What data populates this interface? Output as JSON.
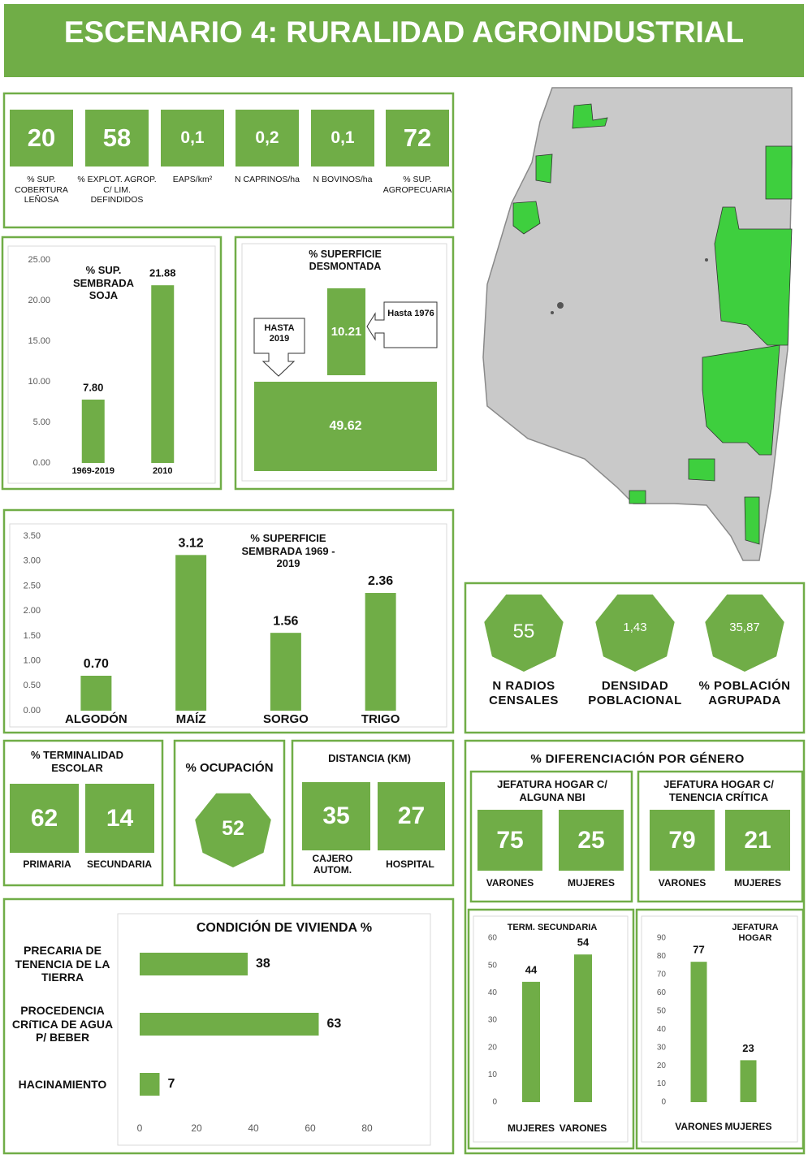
{
  "title": "ESCENARIO 4: RURALIDAD AGROINDUSTRIAL",
  "indicators": [
    {
      "value": "20",
      "label": "% SUP. COBERTURA LEÑOSA"
    },
    {
      "value": "58",
      "label": "% EXPLOT. AGROP. C/ LIM. DEFINDIDOS"
    },
    {
      "value": "0,1",
      "label": "EAPS/km²"
    },
    {
      "value": "0,2",
      "label": "N CAPRINOS/ha"
    },
    {
      "value": "0,1",
      "label": "N BOVINOS/ha"
    },
    {
      "value": "72",
      "label": "% SUP. AGROPECUARIA"
    }
  ],
  "desmonte": {
    "title": "% SUPERFICIE DESMONTADA",
    "items": [
      {
        "value": "10.21",
        "label": "Hasta 1976"
      },
      {
        "value": "49.62",
        "label": "HASTA 2019"
      }
    ]
  },
  "poblacion": [
    {
      "value": "55",
      "label": "N RADIOS CENSALES"
    },
    {
      "value": "1,43",
      "label": "DENSIDAD POBLACIONAL"
    },
    {
      "value": "35,87",
      "label": "% POBLACIÓN AGRUPADA"
    }
  ],
  "terminalidad": {
    "title": "% TERMINALIDAD ESCOLAR",
    "items": [
      {
        "value": "62",
        "label": "PRIMARIA"
      },
      {
        "value": "14",
        "label": "SECUNDARIA"
      }
    ]
  },
  "ocupacion": {
    "title": "% OCUPACIÓN",
    "value": "52"
  },
  "distancia": {
    "title": "DISTANCIA (KM)",
    "items": [
      {
        "value": "35",
        "label": "CAJERO AUTOM."
      },
      {
        "value": "27",
        "label": "HOSPITAL"
      }
    ]
  },
  "genero": {
    "title": "% DIFERENCIACIÓN POR GÉNERO",
    "groups": [
      {
        "title": "JEFATURA HOGAR C/ ALGUNA NBI",
        "items": [
          {
            "value": "75",
            "label": "VARONES"
          },
          {
            "value": "25",
            "label": "MUJERES"
          }
        ]
      },
      {
        "title": "JEFATURA HOGAR C/ TENENCIA CRÍTICA",
        "items": [
          {
            "value": "79",
            "label": "VARONES"
          },
          {
            "value": "21",
            "label": "MUJERES"
          }
        ]
      }
    ]
  },
  "chart_data": [
    {
      "type": "bar",
      "title": "% SUP. SEMBRADA SOJA",
      "categories": [
        "1969-2019",
        "2010"
      ],
      "values": [
        7.8,
        21.88
      ],
      "value_labels": [
        "7.80",
        "21.88"
      ],
      "color": "#70ad47",
      "ylim": [
        0,
        25
      ],
      "yticks": [
        {
          "value": 0,
          "label": "0.00"
        },
        {
          "value": 5,
          "label": "5.00"
        },
        {
          "value": 10,
          "label": "10.00"
        },
        {
          "value": 15,
          "label": "15.00"
        },
        {
          "value": 20,
          "label": "20.00"
        },
        {
          "value": 25,
          "label": "25.00"
        }
      ],
      "grid": false
    },
    {
      "type": "bar",
      "title": "% SUPERFICIE SEMBRADA 1969 - 2019",
      "categories": [
        "ALGODÓN",
        "MAÍZ",
        "SORGO",
        "TRIGO"
      ],
      "values": [
        0.7,
        3.12,
        1.56,
        2.36
      ],
      "value_labels": [
        "0.70",
        "3.12",
        "1.56",
        "2.36"
      ],
      "color": "#70ad47",
      "ylim": [
        0,
        3.5
      ],
      "yticks": [
        {
          "value": 0,
          "label": "0.00"
        },
        {
          "value": 0.5,
          "label": "0.50"
        },
        {
          "value": 1,
          "label": "1.00"
        },
        {
          "value": 1.5,
          "label": "1.50"
        },
        {
          "value": 2,
          "label": "2.00"
        },
        {
          "value": 2.5,
          "label": "2.50"
        },
        {
          "value": 3,
          "label": "3.00"
        },
        {
          "value": 3.5,
          "label": "3.50"
        }
      ],
      "grid": false
    },
    {
      "type": "bar",
      "orientation": "horizontal",
      "title": "CONDICIÓN DE VIVIENDA %",
      "categories": [
        "PRECARIA DE TENENCIA DE LA TIERRA",
        "PROCEDENCIA CRíTICA DE AGUA P/ BEBER",
        "HACINAMIENTO"
      ],
      "values": [
        38,
        63,
        7
      ],
      "color": "#70ad47",
      "xlim": [
        0,
        100
      ],
      "xticks": [
        0,
        20,
        40,
        60,
        80
      ],
      "grid": false
    },
    {
      "type": "bar",
      "title": "TERM. SECUNDARIA",
      "categories": [
        "MUJERES",
        "VARONES"
      ],
      "values": [
        44,
        54
      ],
      "color": "#70ad47",
      "ylim": [
        0,
        60
      ],
      "yticks": [
        0,
        10,
        20,
        30,
        40,
        50,
        60
      ],
      "grid": false
    },
    {
      "type": "bar",
      "title": "JEFATURA HOGAR",
      "categories": [
        "VARONES",
        "MUJERES"
      ],
      "values": [
        77,
        23
      ],
      "color": "#70ad47",
      "ylim": [
        0,
        90
      ],
      "yticks": [
        0,
        10,
        20,
        30,
        40,
        50,
        60,
        70,
        80,
        90
      ],
      "grid": false
    }
  ]
}
